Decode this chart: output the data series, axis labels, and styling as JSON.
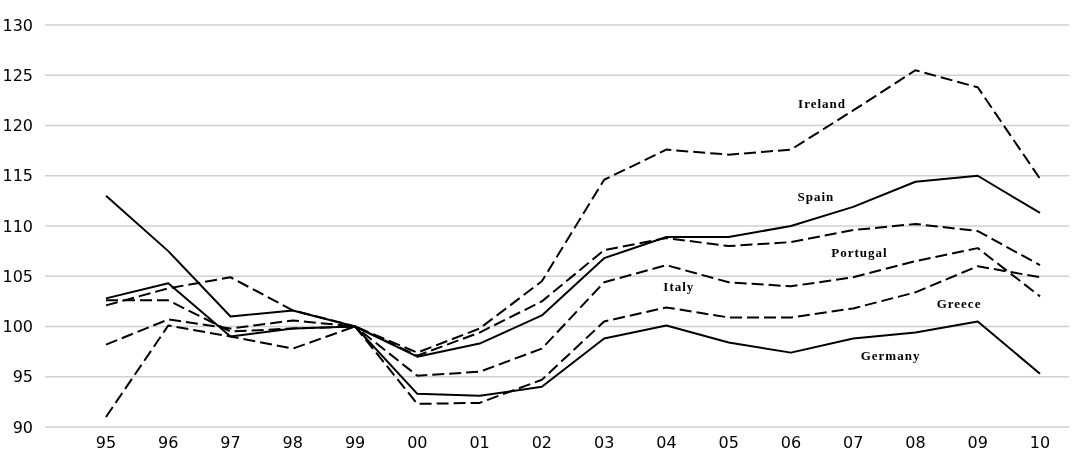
{
  "chart_data": {
    "type": "line",
    "categories": [
      "95",
      "96",
      "97",
      "98",
      "99",
      "00",
      "01",
      "02",
      "03",
      "04",
      "05",
      "06",
      "07",
      "08",
      "09",
      "10"
    ],
    "ylim": [
      90,
      130
    ],
    "yticks": [
      90,
      95,
      100,
      105,
      110,
      115,
      120,
      125,
      130
    ],
    "grid": "y",
    "legend": false,
    "series": [
      {
        "name": "Ireland",
        "color": "#000000",
        "line_style": "dashed",
        "values": [
          91,
          100.1,
          99,
          97.8,
          100,
          97.4,
          99.8,
          104.5,
          114.6,
          117.6,
          117.1,
          117.6,
          121.5,
          125.5,
          123.8,
          114.7
        ]
      },
      {
        "name": "Spain",
        "color": "#000000",
        "line_style": "solid",
        "values": [
          102.8,
          104.3,
          99,
          99.8,
          100,
          97,
          98.3,
          101.1,
          106.8,
          108.9,
          108.9,
          110,
          111.9,
          114.4,
          115,
          111.3
        ]
      },
      {
        "name": "Portugal",
        "color": "#000000",
        "line_style": "dashed",
        "values": [
          102.6,
          102.6,
          99.5,
          99.8,
          100,
          97.1,
          99.4,
          102.5,
          107.6,
          108.8,
          108,
          108.4,
          109.6,
          110.2,
          109.5,
          106.1
        ]
      },
      {
        "name": "Italy",
        "color": "#000000",
        "line_style": "dashed",
        "values": [
          102.1,
          103.8,
          104.9,
          101.6,
          100,
          95.1,
          95.5,
          97.8,
          104.4,
          106.1,
          104.4,
          104,
          104.9,
          106.5,
          107.8,
          103
        ]
      },
      {
        "name": "Greece",
        "color": "#000000",
        "line_style": "dashed",
        "values": [
          98.2,
          100.7,
          99.8,
          100.6,
          100,
          92.3,
          92.4,
          94.7,
          100.5,
          101.9,
          100.9,
          100.9,
          101.8,
          103.4,
          106,
          104.9
        ]
      },
      {
        "name": "Germany",
        "color": "#000000",
        "line_style": "solid",
        "values": [
          113,
          107.5,
          101,
          101.6,
          100,
          93.3,
          93.1,
          94,
          98.8,
          100.1,
          98.4,
          97.4,
          98.8,
          99.4,
          100.5,
          95.3
        ]
      }
    ]
  }
}
